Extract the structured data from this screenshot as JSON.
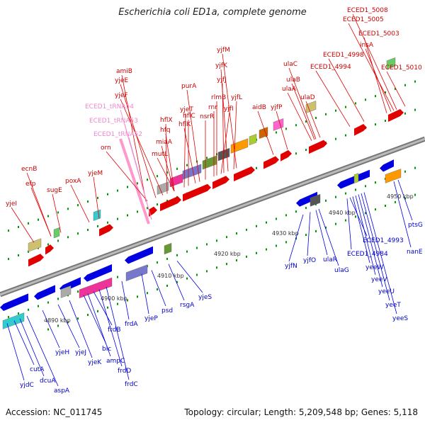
{
  "title": "Escherichia coli ED1a, complete genome",
  "footer": {
    "accession": "Accession: NC_011745",
    "topology": "Topology: circular; Length: 5,209,548 bp; Genes: 5,118"
  },
  "colors": {
    "forward": "#e00000",
    "reverse": "#0000e0",
    "trna": "#ff99cc",
    "backbone": "#999999",
    "ticks": "#009900",
    "forward_label": "#cc0000",
    "reverse_label": "#0000cc",
    "trna_label": "#ee88cc"
  },
  "ticks": [
    "4890 kbp",
    "4900 kbp",
    "4910 kbp",
    "4920 kbp",
    "4930 kbp",
    "4940 kbp",
    "4950 kbp"
  ],
  "forward_labels": [
    "yjeI",
    "efp",
    "ecnB",
    "sugE",
    "poxA",
    "yjeM",
    "orn",
    "amiB",
    "yjeE",
    "yjeF",
    "hflX",
    "hfq",
    "miaA",
    "mutL",
    "yjeT",
    "hflC",
    "hflK",
    "purA",
    "nsrR",
    "rnr",
    "rlmB",
    "yjfI",
    "yjfJ",
    "yjfK",
    "yjfL",
    "yjfM",
    "aidB",
    "yjfP",
    "ulaA",
    "ulaB",
    "ulaC",
    "ulaD",
    "ECED1_4994",
    "ECED1_4998",
    "ECED1_5003",
    "insA",
    "ECED1_5005",
    "ECED1_5008",
    "ECED1_5010"
  ],
  "trna_labels": [
    "ECED1_tRNA54",
    "ECED1_tRNA53",
    "ECED1_tRNA52"
  ],
  "reverse_labels": [
    "yjdC",
    "cutA",
    "dcuA",
    "aspA",
    "yjeH",
    "yjeJ",
    "yjeK",
    "blc",
    "ampC",
    "frdB",
    "frdD",
    "frdC",
    "frdA",
    "yjeP",
    "psd",
    "rsgA",
    "yjeS",
    "yjfN",
    "yjfO",
    "ulaR",
    "ulaG",
    "ECED1_4993",
    "ECED1_4984",
    "yeeW",
    "yeeV",
    "yeeU",
    "yeeT",
    "yeeS",
    "ptsG",
    "nanE"
  ]
}
